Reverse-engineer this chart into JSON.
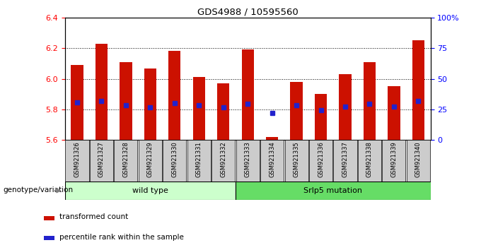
{
  "title": "GDS4988 / 10595560",
  "samples": [
    "GSM921326",
    "GSM921327",
    "GSM921328",
    "GSM921329",
    "GSM921330",
    "GSM921331",
    "GSM921332",
    "GSM921333",
    "GSM921334",
    "GSM921335",
    "GSM921336",
    "GSM921337",
    "GSM921338",
    "GSM921339",
    "GSM921340"
  ],
  "bar_bottom": 5.6,
  "bar_tops": [
    6.09,
    6.23,
    6.11,
    6.065,
    6.18,
    6.01,
    5.97,
    6.19,
    5.62,
    5.98,
    5.9,
    6.03,
    6.11,
    5.95,
    6.25
  ],
  "percentile_values": [
    5.845,
    5.855,
    5.825,
    5.815,
    5.84,
    5.825,
    5.815,
    5.835,
    5.775,
    5.825,
    5.795,
    5.82,
    5.835,
    5.82,
    5.855
  ],
  "ylim_left": [
    5.6,
    6.4
  ],
  "ylim_right": [
    0,
    100
  ],
  "yticks_left": [
    5.6,
    5.8,
    6.0,
    6.2,
    6.4
  ],
  "yticks_right": [
    0,
    25,
    50,
    75,
    100
  ],
  "ytick_labels_right": [
    "0",
    "25",
    "50",
    "75",
    "100%"
  ],
  "bar_color": "#cc1100",
  "percentile_color": "#2222cc",
  "grid_color": "#000000",
  "wild_type_label": "wild type",
  "mutation_label": "Srlp5 mutation",
  "genotype_label": "genotype/variation",
  "legend_bar_label": "transformed count",
  "legend_pct_label": "percentile rank within the sample",
  "wild_type_color": "#ccffcc",
  "mutation_color": "#66dd66",
  "tick_bg_color": "#cccccc",
  "bar_width": 0.5,
  "wt_count": 7,
  "mut_count": 8
}
